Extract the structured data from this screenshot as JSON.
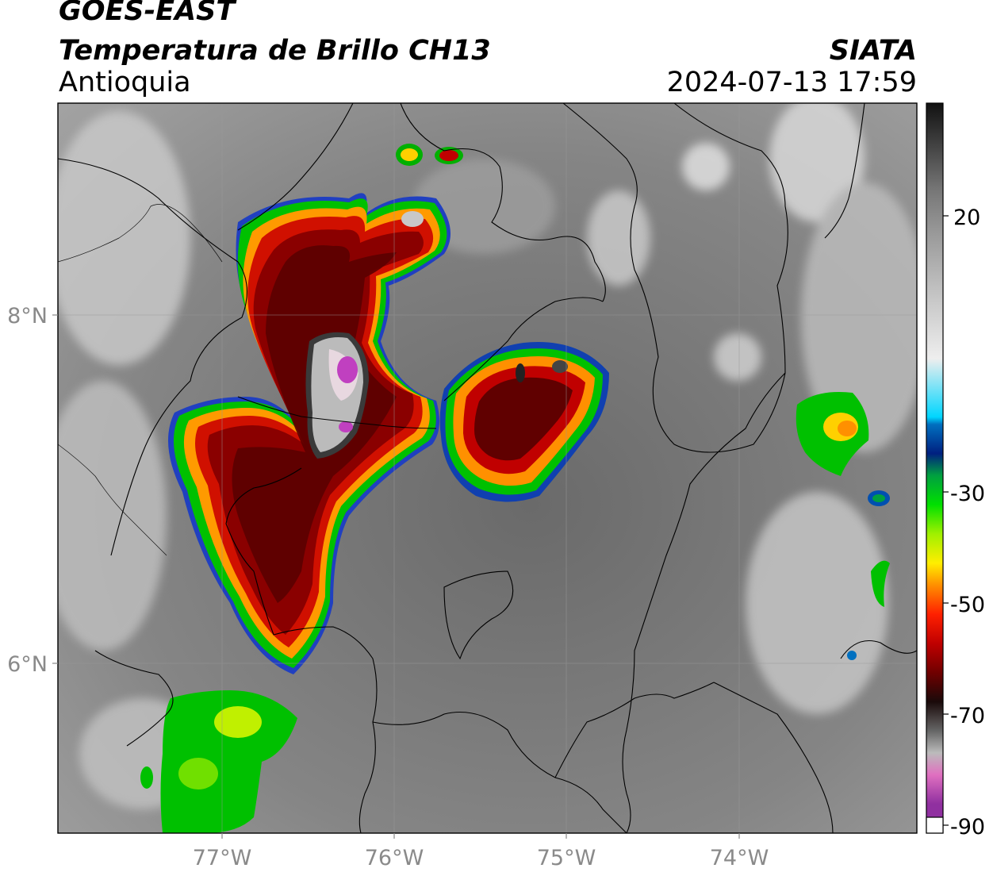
{
  "header": {
    "satellite": "GOES-EAST",
    "product": "Temperatura de Brillo CH13",
    "region": "Antioquia",
    "organization": "SIATA",
    "datetime": "2024-07-13 17:59"
  },
  "map": {
    "lat_labels": [
      "8°N",
      "6°N"
    ],
    "lon_labels": [
      "77°W",
      "76°W",
      "75°W",
      "74°W"
    ]
  },
  "colorbar": {
    "tick_labels": [
      "20",
      "-30",
      "-50",
      "-70",
      "-90"
    ],
    "stops": [
      {
        "color": "#111111"
      },
      {
        "color": "#333333"
      },
      {
        "color": "#555555"
      },
      {
        "color": "#777777"
      },
      {
        "color": "#9a9a9a"
      },
      {
        "color": "#c3c3c3"
      },
      {
        "color": "#eeeeee"
      },
      {
        "color": "#00d6ff"
      },
      {
        "color": "#0070c0"
      },
      {
        "color": "#002080"
      },
      {
        "color": "#00a040"
      },
      {
        "color": "#00e000"
      },
      {
        "color": "#a0f000"
      },
      {
        "color": "#ffee00"
      },
      {
        "color": "#ff9000"
      },
      {
        "color": "#ff2000"
      },
      {
        "color": "#c00000"
      },
      {
        "color": "#700000"
      },
      {
        "color": "#1a0a0a"
      },
      {
        "color": "#666666"
      },
      {
        "color": "#bbbbbb"
      },
      {
        "color": "#e070c0"
      },
      {
        "color": "#9030a0"
      }
    ]
  }
}
